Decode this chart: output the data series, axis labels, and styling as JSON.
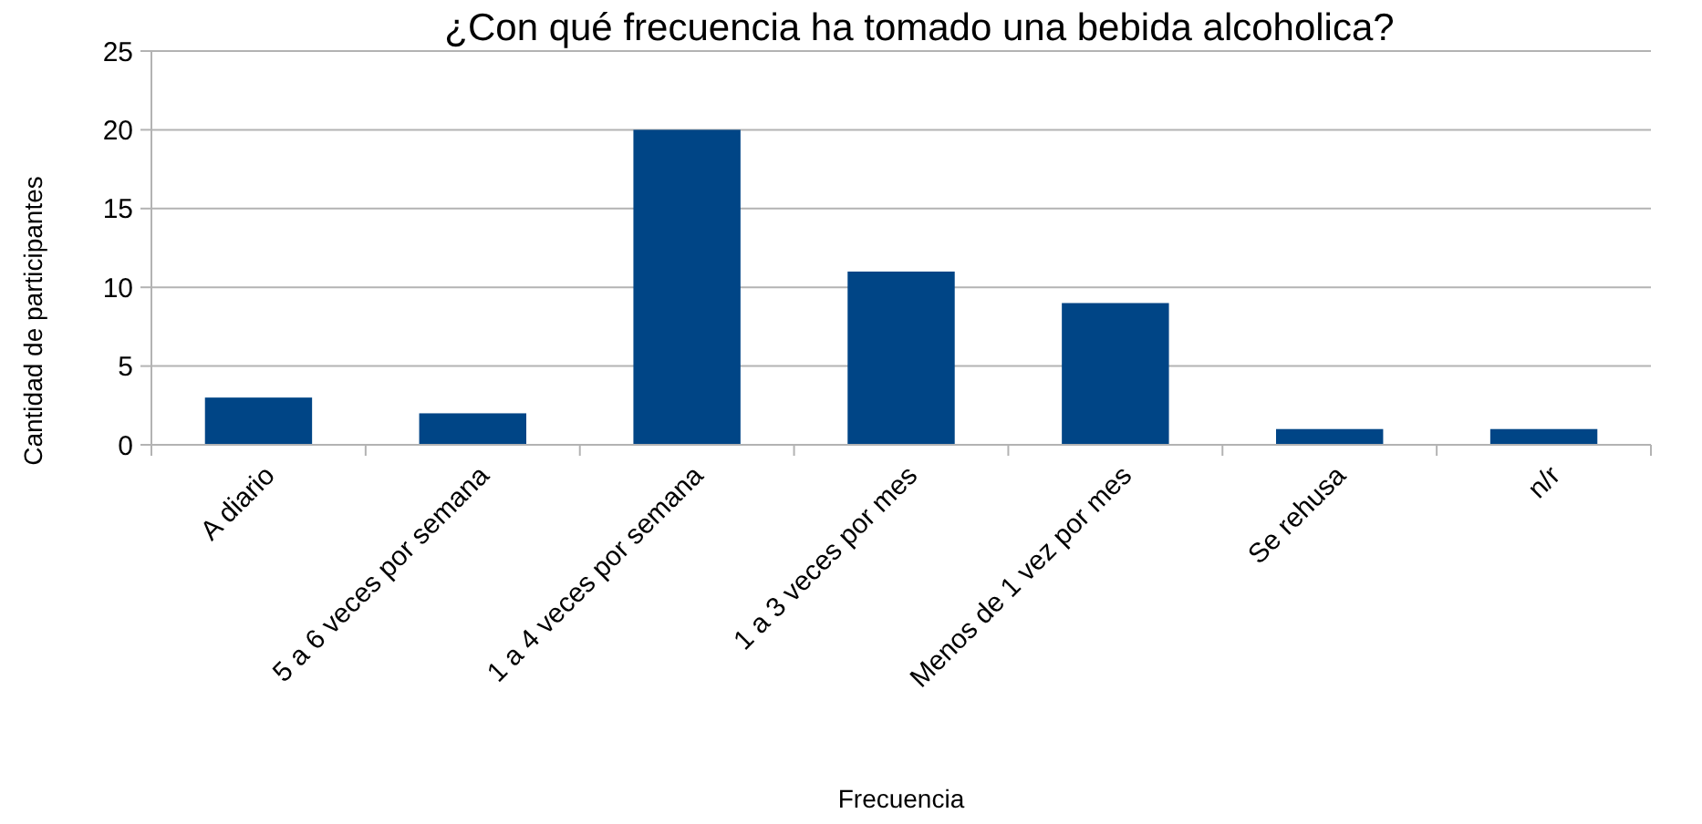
{
  "chart_data": {
    "type": "bar",
    "title": "¿Con qué frecuencia ha tomado una bebida alcoholica?",
    "xlabel": "Frecuencia",
    "ylabel": "Cantidad de participantes",
    "categories": [
      "A diario",
      "5 a 6 veces por semana",
      "1 a 4 veces por semana",
      "1 a 3 veces por mes",
      "Menos de 1 vez por mes",
      "Se rehusa",
      "n/r"
    ],
    "values": [
      3,
      2,
      20,
      11,
      9,
      1,
      1
    ],
    "color": "#004586",
    "ylim": [
      0,
      25
    ],
    "yticks": [
      0,
      5,
      10,
      15,
      20,
      25
    ],
    "grid": "y"
  }
}
